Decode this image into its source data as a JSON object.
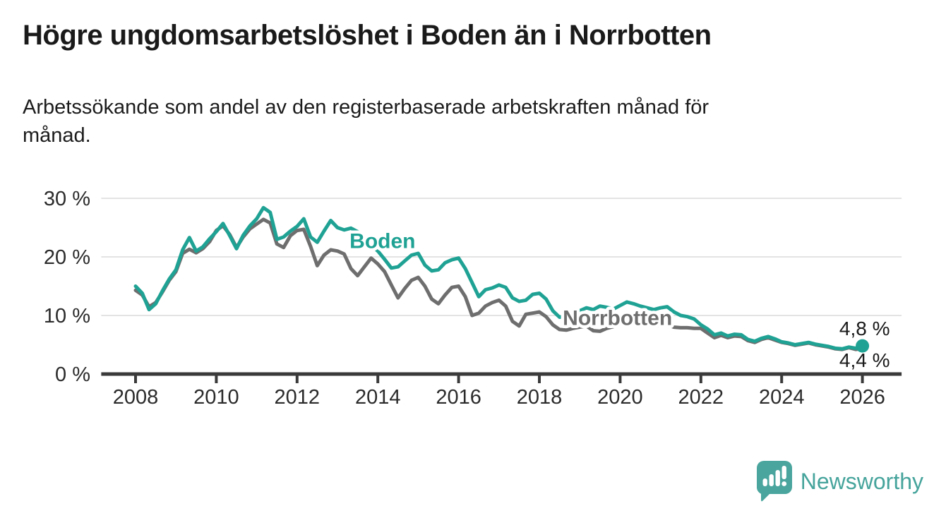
{
  "page": {
    "background_color": "#ffffff"
  },
  "header": {
    "title": "Högre ungdomsarbetslöshet i Boden än i Norrbotten",
    "subtitle": "Arbetssökande som andel av den registerbaserade arbetskraften månad för\nmånad."
  },
  "chart_data": {
    "type": "line",
    "title": "Högre ungdomsarbetslöshet i Boden än i Norrbotten",
    "xlabel": "",
    "ylabel": "",
    "y_unit": "%",
    "x_unit": "år (månadsdata)",
    "x_start": 2008.0,
    "x_step_years": 0.1666667,
    "xlim": [
      2007.15,
      2026.97
    ],
    "ylim": [
      0,
      32
    ],
    "grid": true,
    "legend_position": "inline-labels",
    "y_ticks": [
      {
        "value": 0,
        "label": "0 %"
      },
      {
        "value": 10,
        "label": "10 %"
      },
      {
        "value": 20,
        "label": "20 %"
      },
      {
        "value": 30,
        "label": "30 %"
      }
    ],
    "x_ticks": [
      {
        "value": 2008,
        "label": "2008"
      },
      {
        "value": 2010,
        "label": "2010"
      },
      {
        "value": 2012,
        "label": "2012"
      },
      {
        "value": 2014,
        "label": "2014"
      },
      {
        "value": 2016,
        "label": "2016"
      },
      {
        "value": 2018,
        "label": "2018"
      },
      {
        "value": 2020,
        "label": "2020"
      },
      {
        "value": 2022,
        "label": "2022"
      },
      {
        "value": 2024,
        "label": "2024"
      },
      {
        "value": 2026,
        "label": "2026"
      }
    ],
    "style": {
      "grid_color": "#e3e3e3",
      "axis_color": "#3a3a3a",
      "tick_label_color": "#2b2b2b",
      "annotation_color": "#1a1a1a",
      "line_width": 5
    },
    "series": [
      {
        "name": "Norrbotten",
        "color": "#6e6e6e",
        "inline_label": {
          "text": "Norrbotten",
          "x": 2018.58,
          "y": 8.4,
          "anchor": "start"
        },
        "end_label": {
          "text": "4,4 %",
          "x": 2026.68,
          "y": 1.2,
          "anchor": "end"
        },
        "end_dot": false,
        "values": [
          14.3,
          13.5,
          11.5,
          12.2,
          14.0,
          16.0,
          17.5,
          20.6,
          21.3,
          20.7,
          21.4,
          22.6,
          24.5,
          25.3,
          23.8,
          21.6,
          23.4,
          24.8,
          25.6,
          26.4,
          25.8,
          22.2,
          21.6,
          23.6,
          24.5,
          24.7,
          21.8,
          18.5,
          20.3,
          21.2,
          21.0,
          20.5,
          18.0,
          16.8,
          18.3,
          19.8,
          18.8,
          17.5,
          15.2,
          13.0,
          14.6,
          16.0,
          16.5,
          15.0,
          12.8,
          12.0,
          13.5,
          14.8,
          15.0,
          13.2,
          10.0,
          10.4,
          11.6,
          12.2,
          12.6,
          11.6,
          9.0,
          8.2,
          10.2,
          10.4,
          10.6,
          9.8,
          8.4,
          7.6,
          7.5,
          7.8,
          8.0,
          8.2,
          7.4,
          7.3,
          7.8,
          8.1,
          8.6,
          9.5,
          9.2,
          9.0,
          8.6,
          8.3,
          8.3,
          8.4,
          8.0,
          7.9,
          7.9,
          7.8,
          7.8,
          7.0,
          6.2,
          6.6,
          6.2,
          6.5,
          6.4,
          5.7,
          5.4,
          5.9,
          6.2,
          5.8,
          5.4,
          5.2,
          4.9,
          5.1,
          5.3,
          5.0,
          4.8,
          4.6,
          4.3,
          4.2,
          4.5,
          4.2,
          4.4
        ]
      },
      {
        "name": "Boden",
        "color": "#1fa294",
        "inline_label": {
          "text": "Boden",
          "x": 2013.3,
          "y": 21.5,
          "anchor": "start"
        },
        "end_label": {
          "text": "4,8 %",
          "x": 2026.68,
          "y": 6.6,
          "anchor": "end"
        },
        "end_dot": true,
        "values": [
          15.0,
          13.8,
          11.0,
          12.0,
          14.2,
          16.2,
          17.8,
          21.2,
          23.3,
          21.0,
          21.7,
          23.1,
          24.3,
          25.7,
          23.6,
          21.4,
          23.7,
          25.3,
          26.5,
          28.4,
          27.6,
          23.0,
          23.4,
          24.4,
          25.2,
          26.5,
          23.4,
          22.5,
          24.4,
          26.2,
          25.0,
          24.6,
          24.9,
          24.3,
          23.2,
          22.0,
          21.0,
          19.6,
          18.1,
          18.3,
          19.3,
          20.3,
          20.6,
          18.6,
          17.6,
          17.8,
          19.0,
          19.5,
          19.8,
          18.0,
          15.6,
          13.2,
          14.4,
          14.7,
          15.2,
          14.8,
          13.0,
          12.4,
          12.6,
          13.6,
          13.8,
          12.8,
          10.8,
          9.7,
          9.9,
          10.5,
          10.8,
          11.3,
          11.0,
          11.6,
          11.4,
          11.1,
          11.7,
          12.3,
          12.0,
          11.6,
          11.3,
          11.0,
          11.3,
          11.5,
          10.6,
          10.0,
          9.8,
          9.4,
          8.4,
          7.7,
          6.7,
          7.0,
          6.5,
          6.8,
          6.7,
          5.9,
          5.6,
          6.1,
          6.4,
          6.0,
          5.5,
          5.3,
          5.0,
          5.2,
          5.4,
          5.1,
          4.9,
          4.7,
          4.4,
          4.3,
          4.6,
          4.4,
          4.8
        ]
      }
    ]
  },
  "footer": {
    "brand_name": "Newsworthy",
    "brand_color": "#46a49c",
    "logo_color": "#4aa59e",
    "logo_icon": "bar-chart-speech-bubble"
  }
}
